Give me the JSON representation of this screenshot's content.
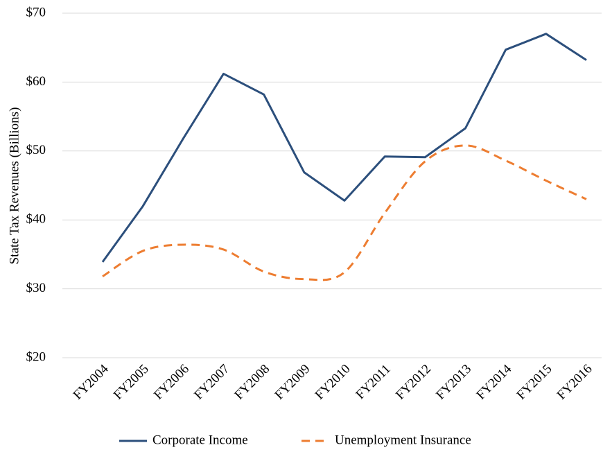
{
  "chart_data": {
    "type": "line",
    "y_label": "State Tax Revenues (Billions)",
    "categories": [
      "FY2004",
      "FY2005",
      "FY2006",
      "FY2007",
      "FY2008",
      "FY2009",
      "FY2010",
      "FY2011",
      "FY2012",
      "FY2013",
      "FY2014",
      "FY2015",
      "FY2016"
    ],
    "series": [
      {
        "name": "Corporate Income",
        "color": "#2c4f7c",
        "dashed": false,
        "smooth": false,
        "values": [
          33.9,
          42,
          51.8,
          61.2,
          58.2,
          46.9,
          42.8,
          49.2,
          49.1,
          53.3,
          64.7,
          67,
          63.2
        ]
      },
      {
        "name": "Unemployment Insurance",
        "color": "#ed7d31",
        "dashed": true,
        "smooth": true,
        "values": [
          31.8,
          35.5,
          36.4,
          35.7,
          32.5,
          31.4,
          32.4,
          41,
          48.5,
          50.8,
          48.6,
          45.7,
          43
        ]
      }
    ],
    "ylim": [
      20,
      70
    ],
    "yticks": [
      {
        "value": 20,
        "label": "$20"
      },
      {
        "value": 30,
        "label": "$30"
      },
      {
        "value": 40,
        "label": "$40"
      },
      {
        "value": 50,
        "label": "$50"
      },
      {
        "value": 60,
        "label": "$60"
      },
      {
        "value": 70,
        "label": "$70"
      }
    ],
    "grid": true,
    "legend": "bottom"
  }
}
